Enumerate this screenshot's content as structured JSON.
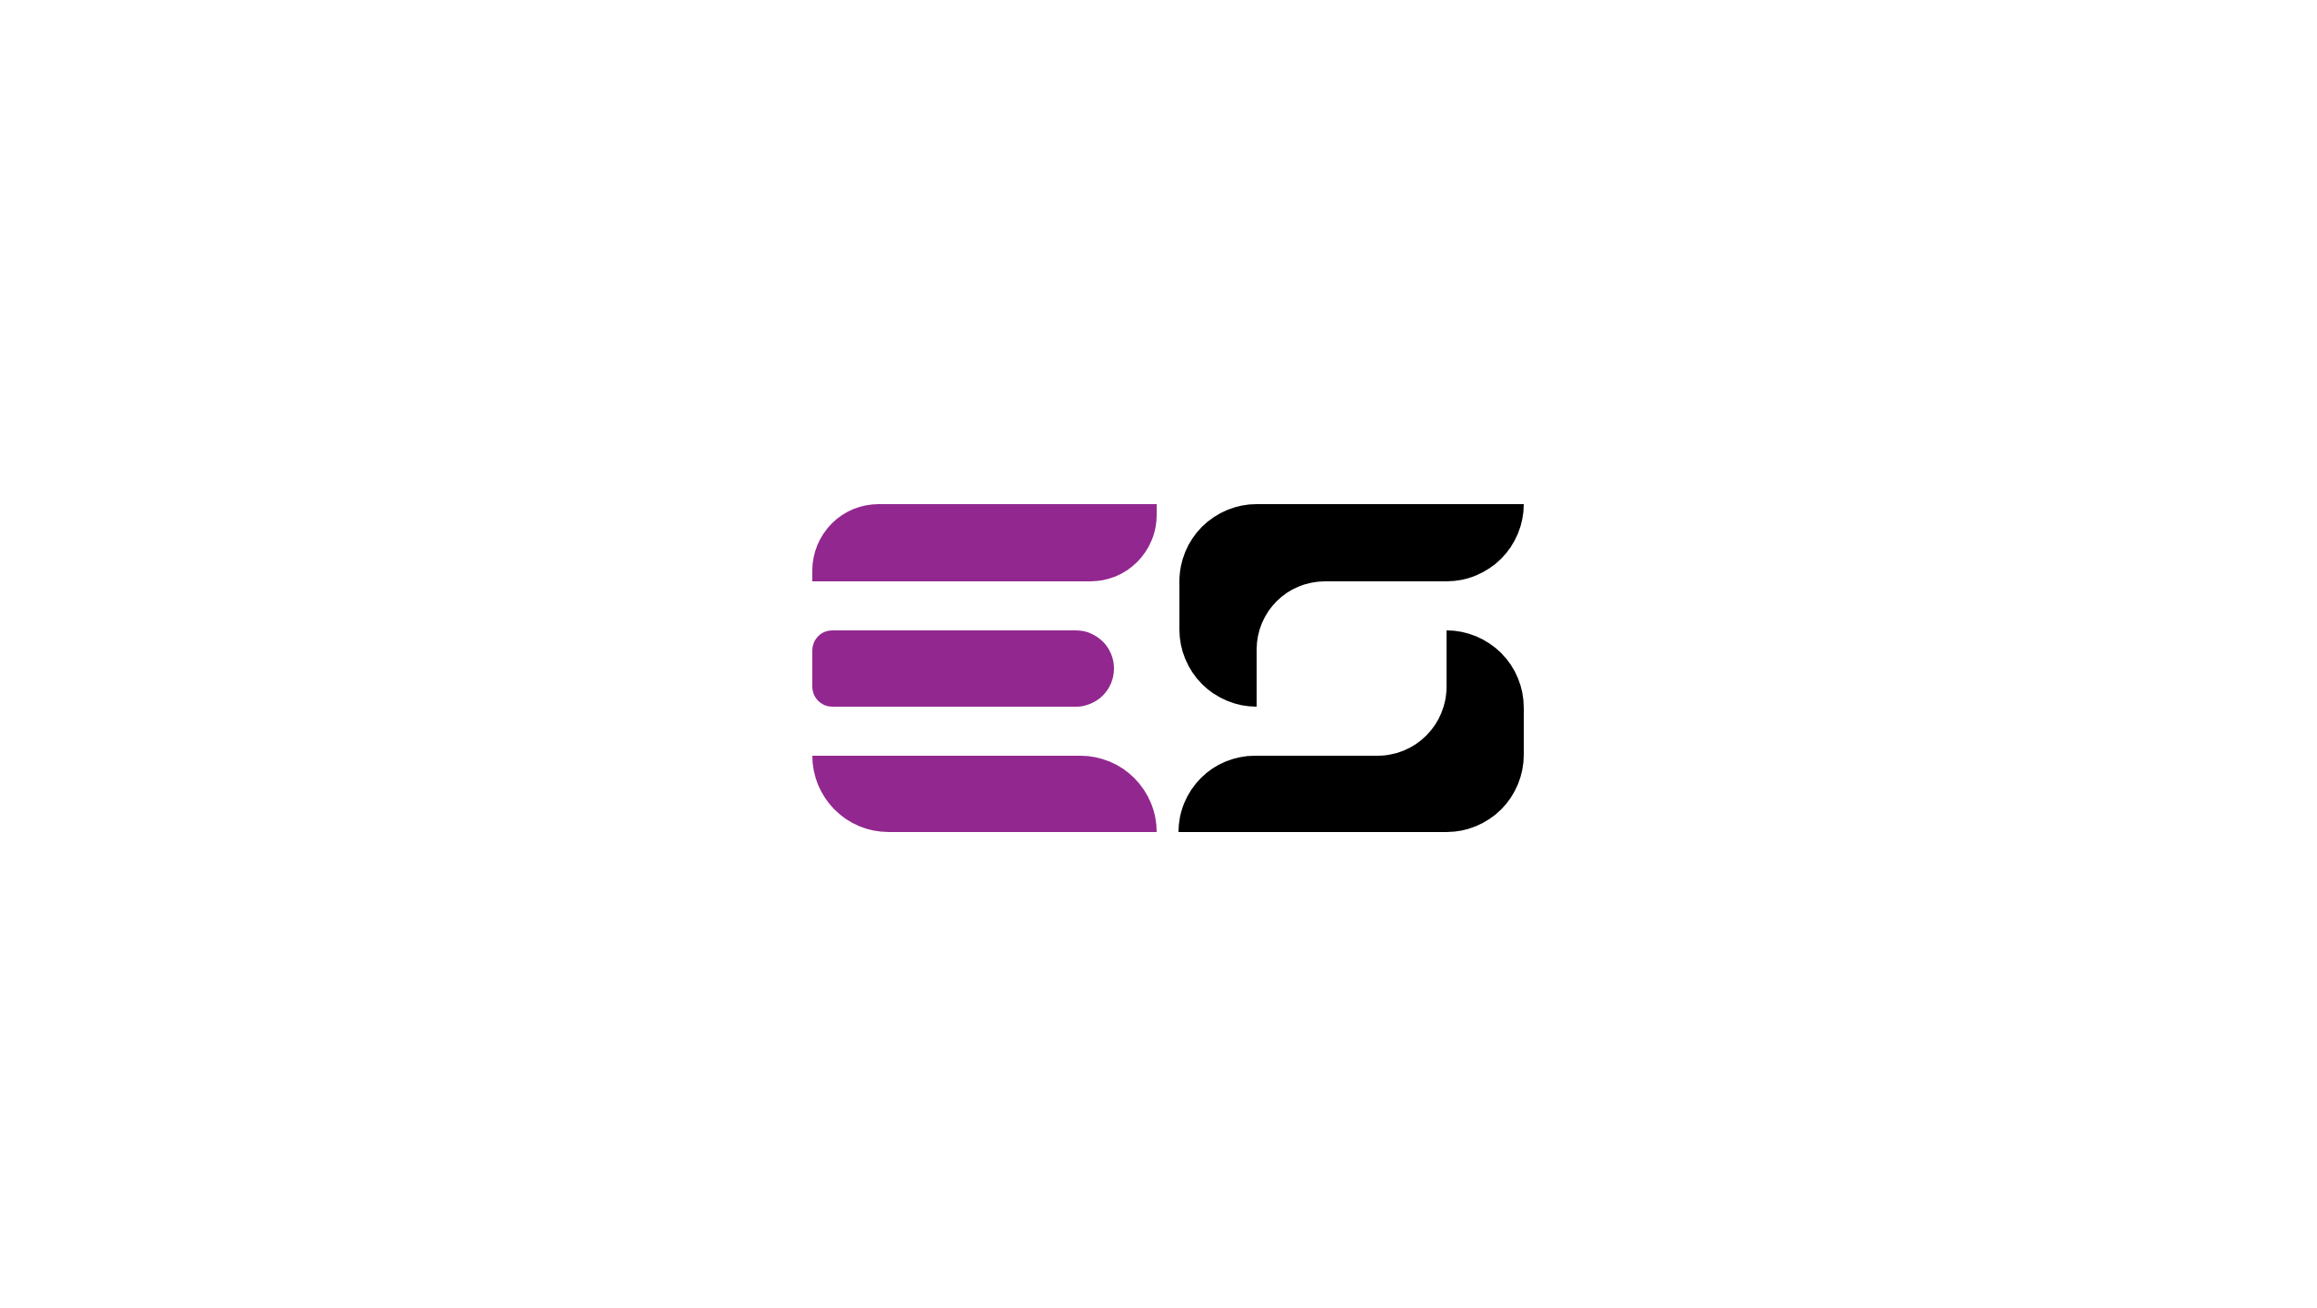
{
  "logo": {
    "letters": [
      "E",
      "S"
    ],
    "colors": {
      "background": "#ffffff",
      "e_mark": "#92278f",
      "s_mark": "#000000"
    }
  }
}
